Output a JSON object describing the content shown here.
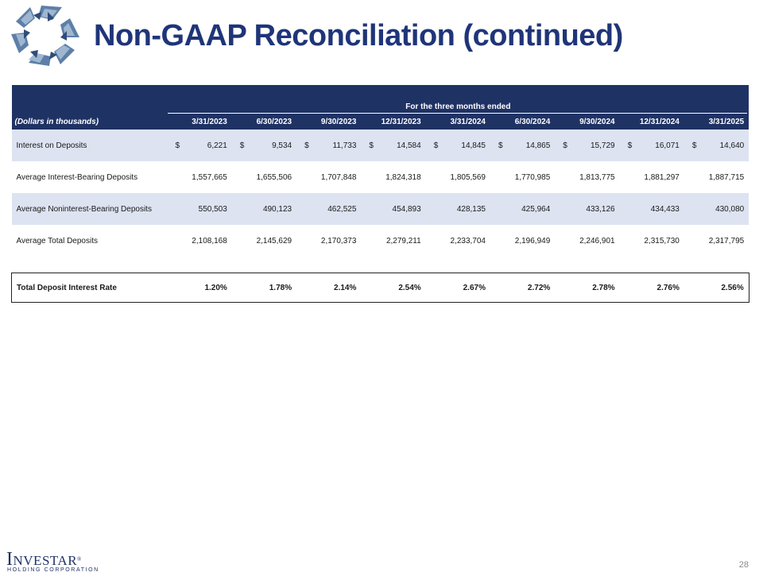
{
  "header": {
    "title": "Non-GAAP Reconciliation (continued)"
  },
  "table": {
    "period_heading": "For the three months ended",
    "label_heading": "(Dollars in thousands)",
    "periods": [
      "3/31/2023",
      "6/30/2023",
      "9/30/2023",
      "12/31/2023",
      "3/31/2024",
      "6/30/2024",
      "9/30/2024",
      "12/31/2024",
      "3/31/2025"
    ],
    "currency_symbol": "$",
    "rows": [
      {
        "label": "Interest on Deposits",
        "values": [
          "6,221",
          "9,534",
          "11,733",
          "14,584",
          "14,845",
          "14,865",
          "15,729",
          "16,071",
          "14,640"
        ]
      },
      {
        "label": "Average Interest-Bearing Deposits",
        "values": [
          "1,557,665",
          "1,655,506",
          "1,707,848",
          "1,824,318",
          "1,805,569",
          "1,770,985",
          "1,813,775",
          "1,881,297",
          "1,887,715"
        ]
      },
      {
        "label": "Average Noninterest-Bearing Deposits",
        "values": [
          "550,503",
          "490,123",
          "462,525",
          "454,893",
          "428,135",
          "425,964",
          "433,126",
          "434,433",
          "430,080"
        ]
      },
      {
        "label": "Average Total Deposits",
        "values": [
          "2,108,168",
          "2,145,629",
          "2,170,373",
          "2,279,211",
          "2,233,704",
          "2,196,949",
          "2,246,901",
          "2,315,730",
          "2,317,795"
        ]
      }
    ],
    "total": {
      "label": "Total Deposit Interest Rate",
      "values": [
        "1.20%",
        "1.78%",
        "2.14%",
        "2.54%",
        "2.67%",
        "2.72%",
        "2.78%",
        "2.76%",
        "2.56%"
      ]
    }
  },
  "footer": {
    "logo_text_first": "I",
    "logo_text_rest": "NVESTAR",
    "logo_registered": "®",
    "logo_subtext": "HOLDING CORPORATION",
    "page_number": "28"
  },
  "colors": {
    "brand_navy": "#1f3264",
    "title_blue": "#1f3579",
    "row_shade": "#dde3f1"
  },
  "icons": {
    "top_logo": "investar-star-logo-icon"
  }
}
